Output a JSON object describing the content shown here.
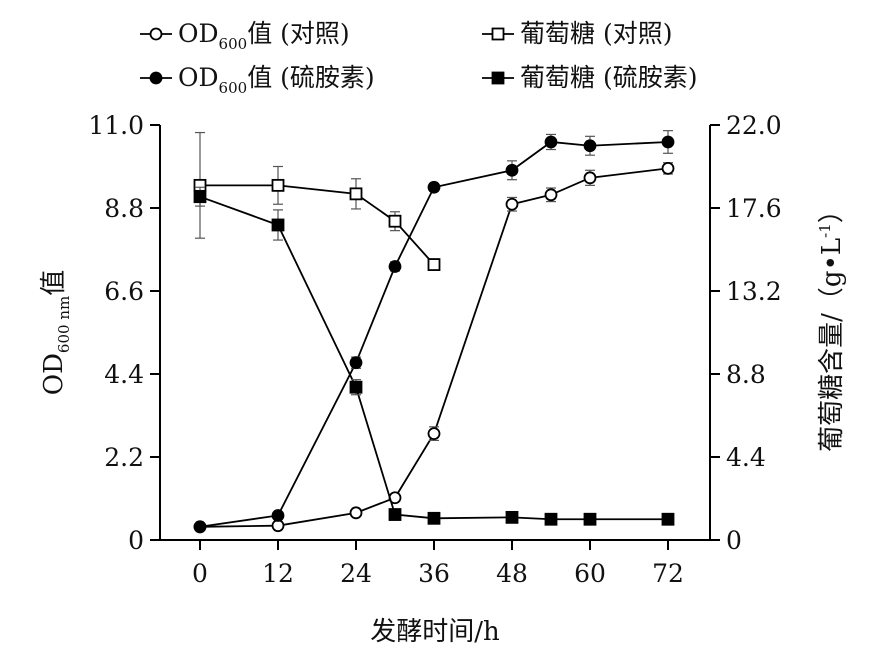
{
  "chart_data": {
    "type": "line",
    "x": [
      0,
      12,
      24,
      30,
      36,
      48,
      54,
      60,
      72
    ],
    "xlabel": "发酵时间/h",
    "ylabel": "OD600 nm值",
    "ylabel_parts": {
      "prefix": "OD",
      "sub": "600 nm",
      "suffix": "值"
    },
    "y2label": "葡萄糖含量/（g•L-1）",
    "y2label_parts": {
      "main": "葡萄糖含量/（g•L",
      "sup": "-1",
      "close": "）"
    },
    "xlim": [
      0,
      72
    ],
    "ylim": [
      0,
      11.0
    ],
    "y2lim": [
      0,
      22.0
    ],
    "xticks": [
      "0",
      "12",
      "24",
      "36",
      "48",
      "60",
      "72"
    ],
    "yticks": [
      "0",
      "2.2",
      "4.4",
      "6.6",
      "8.8",
      "11.0"
    ],
    "y2ticks": [
      "0",
      "4.4",
      "8.8",
      "13.2",
      "17.6",
      "22.0"
    ],
    "series": [
      {
        "name": "OD600值 (对照)",
        "axis": "left",
        "marker": "circle",
        "fill": "open",
        "label_parts": {
          "prefix": "OD",
          "sub": "600",
          "suffix": "值 (对照)"
        },
        "values": [
          0.35,
          0.38,
          0.72,
          1.12,
          2.82,
          8.9,
          9.15,
          9.6,
          9.85
        ],
        "errors": [
          0.03,
          0.03,
          0.05,
          0.08,
          0.18,
          0.18,
          0.18,
          0.2,
          0.15
        ]
      },
      {
        "name": "葡萄糖 (对照)",
        "axis": "right",
        "marker": "square",
        "fill": "open",
        "values": [
          18.8,
          18.8,
          18.35,
          16.9,
          14.6,
          null,
          null,
          null,
          null
        ],
        "errors": [
          2.8,
          1.0,
          0.8,
          0.5,
          0.3,
          null,
          null,
          null,
          null
        ]
      },
      {
        "name": "OD600值 (硫胺素)",
        "axis": "left",
        "marker": "circle",
        "fill": "filled",
        "label_parts": {
          "prefix": "OD",
          "sub": "600",
          "suffix": "值 (硫胺素)"
        },
        "values": [
          0.35,
          0.65,
          4.7,
          7.25,
          9.35,
          9.8,
          10.55,
          10.45,
          10.55
        ],
        "errors": [
          0.03,
          0.05,
          0.15,
          0.12,
          0.1,
          0.25,
          0.2,
          0.25,
          0.3
        ]
      },
      {
        "name": "葡萄糖 (硫胺素)",
        "axis": "right",
        "marker": "square",
        "fill": "filled",
        "values": [
          18.2,
          16.7,
          8.1,
          1.35,
          1.15,
          1.2,
          1.1,
          1.1,
          1.1
        ],
        "errors": [
          0.5,
          0.8,
          0.4,
          0.1,
          0.08,
          0.08,
          0.08,
          0.08,
          0.08
        ]
      }
    ],
    "legend": "top",
    "grid": false
  }
}
